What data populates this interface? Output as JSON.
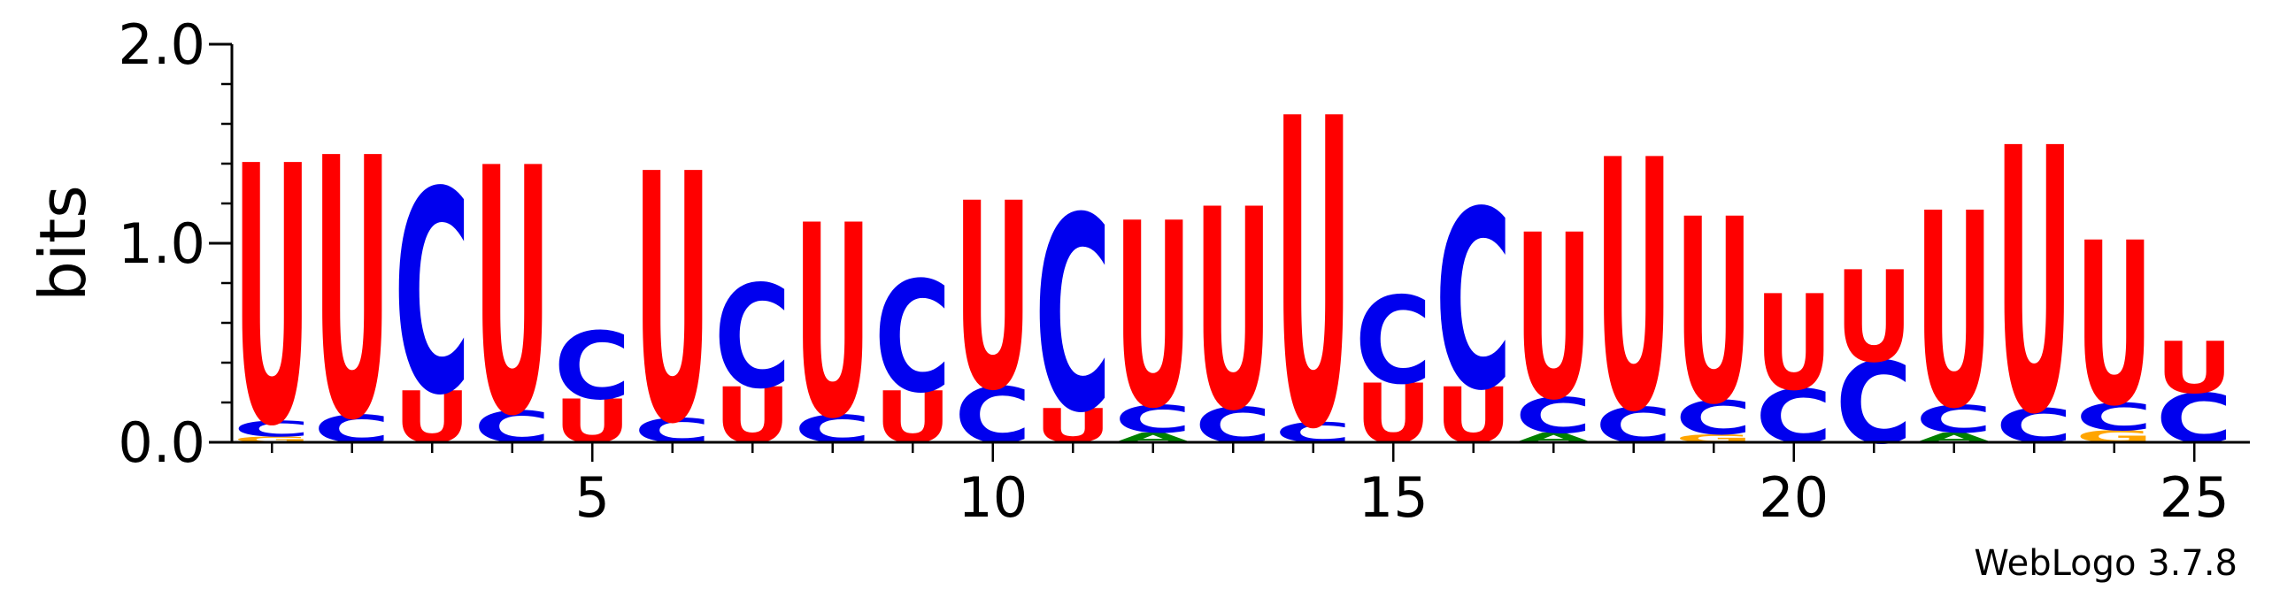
{
  "chart_data": {
    "type": "sequence-logo",
    "ylabel": "bits",
    "ylim": [
      0,
      2.0
    ],
    "y_ticks": [
      {
        "value": 0.0,
        "label": "0.0"
      },
      {
        "value": 1.0,
        "label": "1.0"
      },
      {
        "value": 2.0,
        "label": "2.0"
      }
    ],
    "y_minor_step": 0.2,
    "x_range": [
      1,
      25
    ],
    "x_ticks": [
      {
        "value": 5,
        "label": "5"
      },
      {
        "value": 10,
        "label": "10"
      },
      {
        "value": 15,
        "label": "15"
      },
      {
        "value": 20,
        "label": "20"
      },
      {
        "value": 25,
        "label": "25"
      }
    ],
    "colors": {
      "U": "#ff0000",
      "C": "#0000ee",
      "A": "#008000",
      "G": "#ffa500"
    },
    "positions": [
      {
        "pos": 1,
        "stack": [
          [
            "G",
            0.03
          ],
          [
            "C",
            0.08
          ],
          [
            "U",
            1.3
          ]
        ]
      },
      {
        "pos": 2,
        "stack": [
          [
            "C",
            0.14
          ],
          [
            "U",
            1.31
          ]
        ]
      },
      {
        "pos": 3,
        "stack": [
          [
            "U",
            0.26
          ],
          [
            "C",
            1.02
          ]
        ]
      },
      {
        "pos": 4,
        "stack": [
          [
            "C",
            0.16
          ],
          [
            "U",
            1.24
          ]
        ]
      },
      {
        "pos": 5,
        "stack": [
          [
            "U",
            0.22
          ],
          [
            "C",
            0.34
          ]
        ]
      },
      {
        "pos": 6,
        "stack": [
          [
            "C",
            0.12
          ],
          [
            "U",
            1.25
          ]
        ]
      },
      {
        "pos": 7,
        "stack": [
          [
            "U",
            0.28
          ],
          [
            "C",
            0.52
          ]
        ]
      },
      {
        "pos": 8,
        "stack": [
          [
            "C",
            0.14
          ],
          [
            "U",
            0.97
          ]
        ]
      },
      {
        "pos": 9,
        "stack": [
          [
            "U",
            0.26
          ],
          [
            "C",
            0.56
          ]
        ]
      },
      {
        "pos": 10,
        "stack": [
          [
            "C",
            0.28
          ],
          [
            "U",
            0.94
          ]
        ]
      },
      {
        "pos": 11,
        "stack": [
          [
            "U",
            0.17
          ],
          [
            "C",
            0.98
          ]
        ]
      },
      {
        "pos": 12,
        "stack": [
          [
            "A",
            0.05
          ],
          [
            "C",
            0.14
          ],
          [
            "U",
            0.93
          ]
        ]
      },
      {
        "pos": 13,
        "stack": [
          [
            "C",
            0.18
          ],
          [
            "U",
            1.01
          ]
        ]
      },
      {
        "pos": 14,
        "stack": [
          [
            "C",
            0.1
          ],
          [
            "U",
            1.55
          ]
        ]
      },
      {
        "pos": 15,
        "stack": [
          [
            "U",
            0.3
          ],
          [
            "C",
            0.44
          ]
        ]
      },
      {
        "pos": 16,
        "stack": [
          [
            "U",
            0.28
          ],
          [
            "C",
            0.9
          ]
        ]
      },
      {
        "pos": 17,
        "stack": [
          [
            "A",
            0.05
          ],
          [
            "C",
            0.18
          ],
          [
            "U",
            0.83
          ]
        ]
      },
      {
        "pos": 18,
        "stack": [
          [
            "C",
            0.18
          ],
          [
            "U",
            1.26
          ]
        ]
      },
      {
        "pos": 19,
        "stack": [
          [
            "G",
            0.04
          ],
          [
            "C",
            0.17
          ],
          [
            "U",
            0.93
          ]
        ]
      },
      {
        "pos": 20,
        "stack": [
          [
            "C",
            0.27
          ],
          [
            "U",
            0.48
          ]
        ]
      },
      {
        "pos": 21,
        "stack": [
          [
            "C",
            0.41
          ],
          [
            "U",
            0.46
          ]
        ]
      },
      {
        "pos": 22,
        "stack": [
          [
            "A",
            0.05
          ],
          [
            "C",
            0.14
          ],
          [
            "U",
            0.98
          ]
        ]
      },
      {
        "pos": 23,
        "stack": [
          [
            "C",
            0.17
          ],
          [
            "U",
            1.33
          ]
        ]
      },
      {
        "pos": 24,
        "stack": [
          [
            "G",
            0.06
          ],
          [
            "C",
            0.14
          ],
          [
            "U",
            0.82
          ]
        ]
      },
      {
        "pos": 25,
        "stack": [
          [
            "C",
            0.25
          ],
          [
            "U",
            0.26
          ]
        ]
      }
    ]
  },
  "footer": {
    "credit": "WebLogo 3.7.8"
  }
}
